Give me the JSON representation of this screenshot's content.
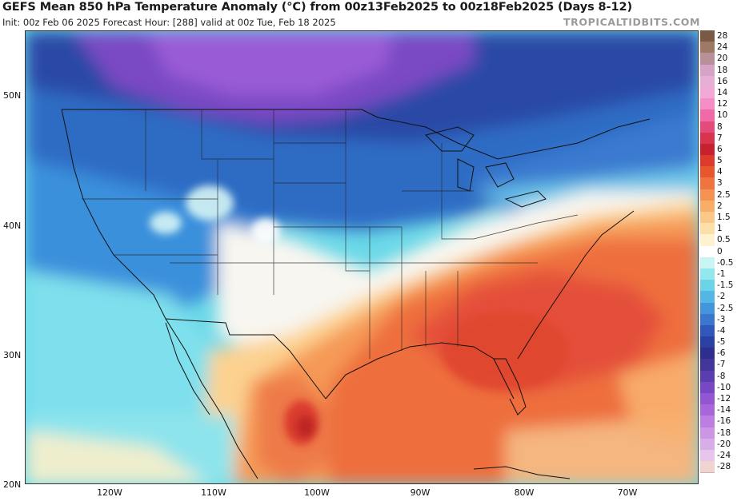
{
  "header": {
    "title": "GEFS Mean 850 hPa Temperature Anomaly (°C) from 00z13Feb2025 to 00z18Feb2025 (Days 8-12)",
    "subtitle": "Init: 00z Feb 06 2025   Forecast Hour: [288]   valid at 00z Tue, Feb 18 2025",
    "brand": "TROPICALTIDBITS.COM"
  },
  "map": {
    "lat_labels": [
      "50N",
      "40N",
      "30N",
      "20N"
    ],
    "lon_labels": [
      "120W",
      "110W",
      "100W",
      "90W",
      "80W",
      "70W"
    ]
  },
  "colorbar": {
    "levels": [
      {
        "label": "28",
        "color": "#7a5a44"
      },
      {
        "label": "24",
        "color": "#9e7a66"
      },
      {
        "label": "20",
        "color": "#b8909a"
      },
      {
        "label": "18",
        "color": "#d6a3c6"
      },
      {
        "label": "16",
        "color": "#e6b0d6"
      },
      {
        "label": "14",
        "color": "#f2a9d8"
      },
      {
        "label": "12",
        "color": "#f58ec8"
      },
      {
        "label": "10",
        "color": "#f06aa8"
      },
      {
        "label": "8",
        "color": "#e44a7a"
      },
      {
        "label": "7",
        "color": "#d8344e"
      },
      {
        "label": "6",
        "color": "#c8202e"
      },
      {
        "label": "5",
        "color": "#de3a2c"
      },
      {
        "label": "4",
        "color": "#e8562e"
      },
      {
        "label": "3",
        "color": "#ef7440"
      },
      {
        "label": "2.5",
        "color": "#f49252"
      },
      {
        "label": "2",
        "color": "#f8ae68"
      },
      {
        "label": "1.5",
        "color": "#fbc888"
      },
      {
        "label": "1",
        "color": "#fde0a8"
      },
      {
        "label": "0.5",
        "color": "#fff2d0"
      },
      {
        "label": "0",
        "color": "#ffffff"
      },
      {
        "label": "-0.5",
        "color": "#c8f4f4"
      },
      {
        "label": "-1",
        "color": "#92e8ec"
      },
      {
        "label": "-1.5",
        "color": "#6cd4e8"
      },
      {
        "label": "-2",
        "color": "#54b6e4"
      },
      {
        "label": "-2.5",
        "color": "#4496dc"
      },
      {
        "label": "-3",
        "color": "#3a78d0"
      },
      {
        "label": "-4",
        "color": "#3058bc"
      },
      {
        "label": "-5",
        "color": "#2a40a2"
      },
      {
        "label": "-6",
        "color": "#2e2e8e"
      },
      {
        "label": "-7",
        "color": "#42369a"
      },
      {
        "label": "-8",
        "color": "#5a3eb0"
      },
      {
        "label": "-10",
        "color": "#7848c4"
      },
      {
        "label": "-12",
        "color": "#9256d2"
      },
      {
        "label": "-14",
        "color": "#a866da"
      },
      {
        "label": "-16",
        "color": "#bc7ee0"
      },
      {
        "label": "-18",
        "color": "#cc96e4"
      },
      {
        "label": "-20",
        "color": "#d8aee8"
      },
      {
        "label": "-24",
        "color": "#e8c6ec"
      },
      {
        "label": "-28",
        "color": "#f0d4d0"
      }
    ]
  }
}
